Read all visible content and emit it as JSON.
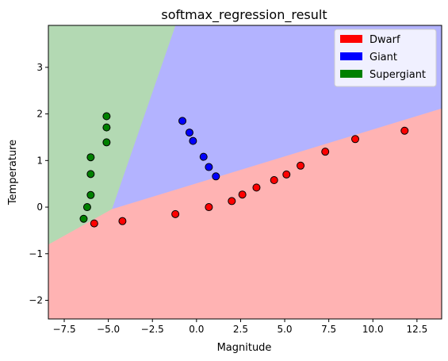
{
  "chart_data": {
    "type": "scatter",
    "title": "softmax_regression_result",
    "xlabel": "Magnitude",
    "ylabel": "Temperature",
    "xlim": [
      -8.4,
      13.9
    ],
    "ylim": [
      -2.4,
      3.9
    ],
    "xticks": [
      "−7.5",
      "−5.0",
      "−2.5",
      "0.0",
      "2.5",
      "5.0",
      "7.5",
      "10.0",
      "12.5"
    ],
    "xtick_values": [
      -7.5,
      -5.0,
      -2.5,
      0.0,
      2.5,
      5.0,
      7.5,
      10.0,
      12.5
    ],
    "yticks": [
      "−2",
      "−1",
      "0",
      "1",
      "2",
      "3"
    ],
    "ytick_values": [
      -2,
      -1,
      0,
      1,
      2,
      3
    ],
    "grid": false,
    "legend_position": "top-right",
    "regions": [
      {
        "name": "Dwarf",
        "color": "#ffb3b3",
        "polygon": [
          [
            -8.4,
            -0.8
          ],
          [
            -4.8,
            -0.04
          ],
          [
            13.9,
            2.12
          ],
          [
            13.9,
            -2.4
          ],
          [
            -8.4,
            -2.4
          ]
        ]
      },
      {
        "name": "Giant",
        "color": "#b3b3ff",
        "polygon": [
          [
            -4.8,
            -0.04
          ],
          [
            -1.2,
            3.9
          ],
          [
            13.9,
            3.9
          ],
          [
            13.9,
            2.12
          ]
        ]
      },
      {
        "name": "Supergiant",
        "color": "#b3d9b3",
        "polygon": [
          [
            -8.4,
            3.9
          ],
          [
            -1.2,
            3.9
          ],
          [
            -4.8,
            -0.04
          ],
          [
            -8.4,
            -0.8
          ]
        ]
      }
    ],
    "series": [
      {
        "name": "Dwarf",
        "color": "#ff0000",
        "points": [
          [
            -5.8,
            -0.35
          ],
          [
            -4.2,
            -0.3
          ],
          [
            -1.2,
            -0.15
          ],
          [
            0.7,
            0.0
          ],
          [
            2.0,
            0.13
          ],
          [
            2.6,
            0.27
          ],
          [
            3.4,
            0.42
          ],
          [
            4.4,
            0.58
          ],
          [
            5.1,
            0.7
          ],
          [
            5.9,
            0.89
          ],
          [
            7.3,
            1.19
          ],
          [
            9.0,
            1.46
          ],
          [
            11.8,
            1.64
          ]
        ]
      },
      {
        "name": "Giant",
        "color": "#0000ff",
        "points": [
          [
            -0.8,
            1.85
          ],
          [
            -0.4,
            1.6
          ],
          [
            -0.2,
            1.42
          ],
          [
            0.4,
            1.08
          ],
          [
            0.7,
            0.86
          ],
          [
            1.1,
            0.66
          ]
        ]
      },
      {
        "name": "Supergiant",
        "color": "#008000",
        "points": [
          [
            -5.1,
            1.95
          ],
          [
            -5.1,
            1.71
          ],
          [
            -5.1,
            1.39
          ],
          [
            -6.0,
            1.07
          ],
          [
            -6.0,
            0.71
          ],
          [
            -6.0,
            0.26
          ],
          [
            -6.2,
            0.0
          ],
          [
            -6.4,
            -0.25
          ]
        ]
      }
    ]
  }
}
